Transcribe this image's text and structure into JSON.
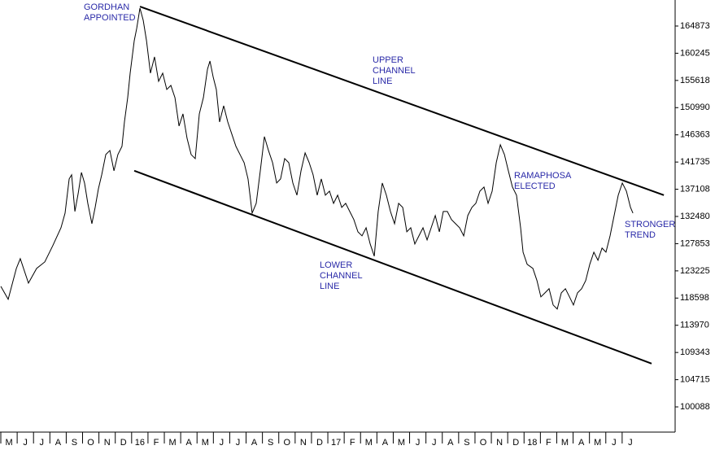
{
  "chart_data": {
    "type": "line",
    "xlim": [
      -0.05,
      41.24
    ],
    "ylim": [
      95938,
      169300
    ],
    "yticks": [
      100088,
      104715,
      109343,
      113970,
      118598,
      123225,
      127853,
      132480,
      137108,
      141735,
      146363,
      150990,
      155618,
      160245,
      164873
    ],
    "xticks": [
      {
        "value": 0,
        "label": "M"
      },
      {
        "value": 1,
        "label": "J"
      },
      {
        "value": 2,
        "label": "J"
      },
      {
        "value": 3,
        "label": "A"
      },
      {
        "value": 4,
        "label": "S"
      },
      {
        "value": 5,
        "label": "O"
      },
      {
        "value": 6,
        "label": "N"
      },
      {
        "value": 7,
        "label": "D"
      },
      {
        "value": 8,
        "label": "16"
      },
      {
        "value": 9,
        "label": "F"
      },
      {
        "value": 10,
        "label": "M"
      },
      {
        "value": 11,
        "label": "A"
      },
      {
        "value": 12,
        "label": "M"
      },
      {
        "value": 13,
        "label": "J"
      },
      {
        "value": 14,
        "label": "J"
      },
      {
        "value": 15,
        "label": "A"
      },
      {
        "value": 16,
        "label": "S"
      },
      {
        "value": 17,
        "label": "O"
      },
      {
        "value": 18,
        "label": "N"
      },
      {
        "value": 19,
        "label": "D"
      },
      {
        "value": 20,
        "label": "17"
      },
      {
        "value": 21,
        "label": "F"
      },
      {
        "value": 22,
        "label": "M"
      },
      {
        "value": 23,
        "label": "A"
      },
      {
        "value": 24,
        "label": "M"
      },
      {
        "value": 25,
        "label": "J"
      },
      {
        "value": 26,
        "label": "J"
      },
      {
        "value": 27,
        "label": "A"
      },
      {
        "value": 28,
        "label": "S"
      },
      {
        "value": 29,
        "label": "O"
      },
      {
        "value": 30,
        "label": "N"
      },
      {
        "value": 31,
        "label": "D"
      },
      {
        "value": 32,
        "label": "18"
      },
      {
        "value": 33,
        "label": "F"
      },
      {
        "value": 34,
        "label": "M"
      },
      {
        "value": 35,
        "label": "A"
      },
      {
        "value": 36,
        "label": "M"
      },
      {
        "value": 37,
        "label": "J"
      },
      {
        "value": 38,
        "label": "J"
      }
    ],
    "x": [
      0.0,
      0.45,
      0.95,
      1.19,
      1.69,
      2.19,
      2.69,
      3.18,
      3.68,
      3.93,
      4.18,
      4.33,
      4.53,
      4.73,
      4.93,
      5.12,
      5.32,
      5.57,
      5.77,
      5.97,
      6.17,
      6.42,
      6.67,
      6.92,
      7.16,
      7.41,
      7.56,
      7.76,
      7.91,
      8.16,
      8.31,
      8.51,
      8.71,
      8.91,
      9.15,
      9.4,
      9.65,
      9.9,
      10.15,
      10.4,
      10.65,
      10.9,
      11.14,
      11.39,
      11.64,
      11.89,
      12.14,
      12.39,
      12.64,
      12.79,
      12.99,
      13.18,
      13.38,
      13.63,
      13.88,
      14.13,
      14.38,
      14.63,
      14.88,
      15.12,
      15.37,
      15.62,
      15.87,
      16.12,
      16.37,
      16.62,
      16.87,
      17.11,
      17.36,
      17.61,
      17.86,
      18.11,
      18.36,
      18.61,
      18.86,
      19.1,
      19.35,
      19.6,
      19.85,
      20.1,
      20.35,
      20.6,
      20.85,
      21.09,
      21.34,
      21.59,
      21.84,
      22.09,
      22.34,
      22.59,
      22.84,
      23.08,
      23.33,
      23.58,
      23.83,
      24.08,
      24.33,
      24.58,
      24.83,
      25.07,
      25.32,
      25.57,
      25.82,
      26.07,
      26.32,
      26.57,
      26.82,
      27.06,
      27.31,
      27.56,
      27.81,
      28.06,
      28.31,
      28.56,
      28.81,
      29.05,
      29.3,
      29.55,
      29.8,
      30.05,
      30.3,
      30.55,
      30.8,
      31.04,
      31.29,
      31.54,
      31.79,
      31.94,
      32.19,
      32.54,
      32.79,
      33.03,
      33.28,
      33.53,
      33.78,
      34.03,
      34.28,
      34.53,
      34.78,
      35.02,
      35.27,
      35.52,
      35.77,
      36.02,
      36.27,
      36.52,
      36.77,
      37.01,
      37.26,
      37.51,
      37.76,
      38.01,
      38.26,
      38.51,
      38.66
    ],
    "series": [
      {
        "color": "#000000",
        "values": [
          120600,
          118390,
          123640,
          125300,
          121150,
          123640,
          124750,
          127520,
          130560,
          133050,
          138860,
          139560,
          133330,
          136370,
          139970,
          138170,
          134710,
          131250,
          134020,
          137200,
          139560,
          143010,
          143700,
          140250,
          143010,
          144400,
          148550,
          152700,
          156850,
          162380,
          164460,
          167920,
          165840,
          162380,
          156850,
          159620,
          155470,
          156850,
          154080,
          154770,
          152700,
          147860,
          149930,
          145780,
          143010,
          142320,
          149930,
          152700,
          157540,
          158920,
          156160,
          154080,
          148550,
          151310,
          148550,
          146470,
          144400,
          143010,
          141630,
          138860,
          133050,
          134710,
          140250,
          146060,
          143700,
          141630,
          138170,
          138860,
          142320,
          141630,
          138170,
          136100,
          140250,
          143290,
          141630,
          139560,
          136100,
          138860,
          136100,
          136790,
          134710,
          136100,
          134020,
          134710,
          133330,
          131950,
          129870,
          129180,
          130560,
          127800,
          125720,
          133330,
          138170,
          136100,
          133330,
          131250,
          134710,
          134020,
          129870,
          130560,
          127800,
          129180,
          130560,
          128490,
          130560,
          132640,
          129870,
          133330,
          133330,
          131950,
          131250,
          130560,
          129180,
          132640,
          134020,
          134710,
          136790,
          137480,
          134710,
          136790,
          141630,
          144670,
          143010,
          140250,
          137480,
          136100,
          130560,
          126410,
          124340,
          123640,
          121570,
          118800,
          119490,
          120190,
          117420,
          116730,
          119490,
          120190,
          118800,
          117420,
          119490,
          120190,
          121570,
          124340,
          126410,
          125030,
          127100,
          126410,
          129180,
          132640,
          136100,
          138170,
          136790,
          134020,
          133050
        ]
      }
    ],
    "channel_lines": [
      {
        "x": [
          8.51,
          40.55
        ],
        "values": [
          168190,
          136100
        ]
      },
      {
        "x": [
          8.16,
          39.8
        ],
        "values": [
          140250,
          107460
        ]
      }
    ],
    "annotations": [
      [
        "GORDHAN",
        "APPOINTED"
      ],
      [
        "UPPER",
        "CHANNEL",
        "LINE"
      ],
      [
        "LOWER",
        "CHANNEL",
        "LINE"
      ],
      [
        "RAMAPHOSA",
        "ELECTED"
      ],
      [
        "STRONGER",
        "TREND"
      ]
    ]
  }
}
